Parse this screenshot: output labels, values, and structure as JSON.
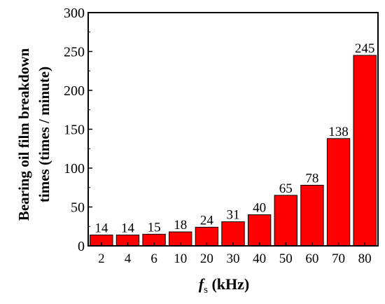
{
  "chart_data": {
    "type": "bar",
    "categories": [
      "2",
      "4",
      "6",
      "10",
      "20",
      "30",
      "40",
      "50",
      "60",
      "70",
      "80"
    ],
    "values": [
      14,
      14,
      15,
      18,
      24,
      31,
      40,
      65,
      78,
      138,
      245
    ],
    "data_labels": [
      "14",
      "14",
      "15",
      "18",
      "24",
      "31",
      "40",
      "65",
      "78",
      "138",
      "245"
    ],
    "ylabel_line1": "Bearing oil film breakdown",
    "ylabel_line2": "times (times / minute)",
    "xlabel_main": "f",
    "xlabel_sub": "s",
    "xlabel_unit": " (kHz)",
    "ylim": [
      0,
      300
    ],
    "yticks": [
      "0",
      "50",
      "100",
      "150",
      "200",
      "250",
      "300"
    ],
    "grid": false,
    "bar_color": "#ff0000"
  }
}
